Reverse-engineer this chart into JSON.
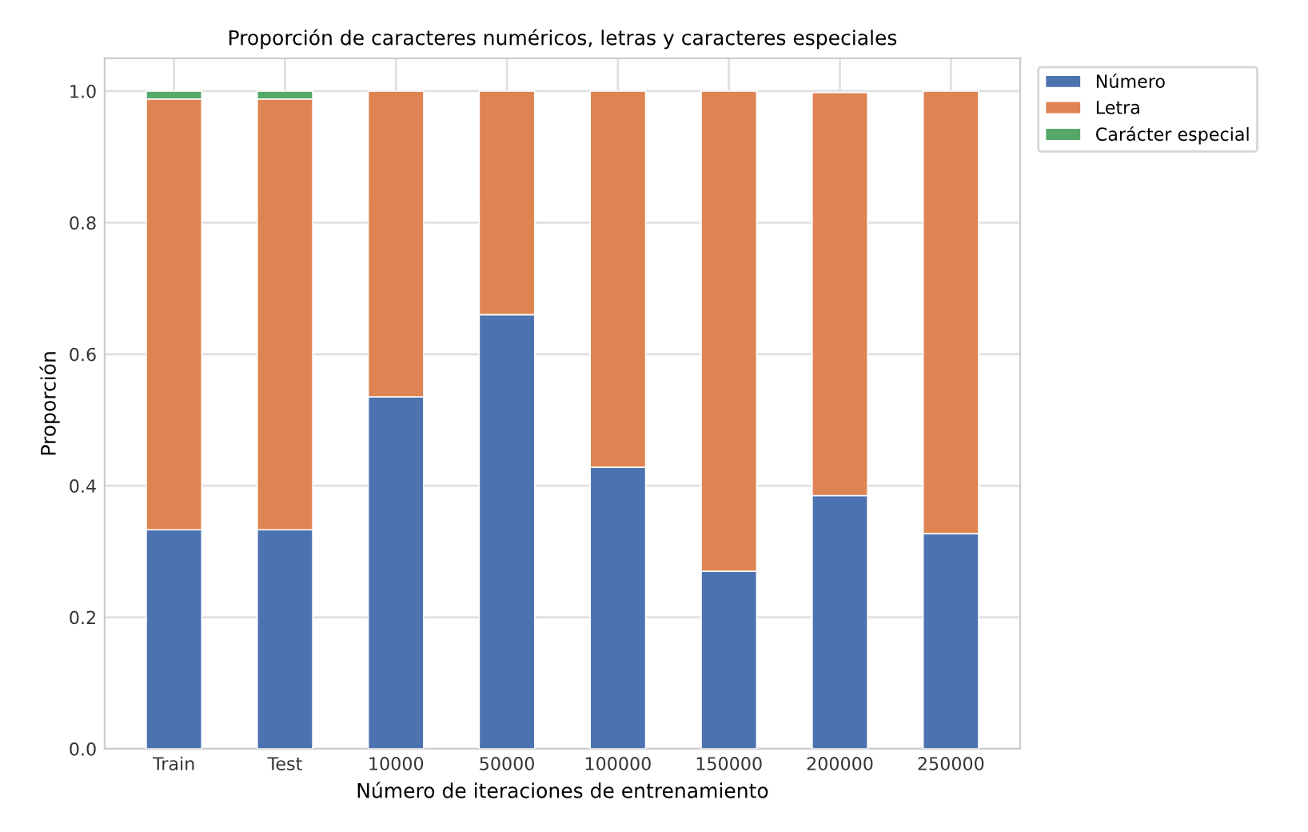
{
  "chart_data": {
    "type": "bar",
    "stacked": true,
    "title": "Proporción de caracteres numéricos, letras y caracteres especiales",
    "xlabel": "Número de iteraciones de entrenamiento",
    "ylabel": "Proporción",
    "categories": [
      "Train",
      "Test",
      "10000",
      "50000",
      "100000",
      "150000",
      "200000",
      "250000"
    ],
    "series": [
      {
        "name": "Número",
        "color": "#4c72b0",
        "values": [
          0.333,
          0.333,
          0.535,
          0.66,
          0.428,
          0.27,
          0.385,
          0.327
        ]
      },
      {
        "name": "Letra",
        "color": "#dd8452",
        "values": [
          0.655,
          0.655,
          0.465,
          0.34,
          0.572,
          0.73,
          0.613,
          0.673
        ]
      },
      {
        "name": "Carácter especial",
        "color": "#55a868",
        "values": [
          0.012,
          0.012,
          null,
          null,
          null,
          null,
          null,
          null
        ]
      }
    ],
    "ylim": [
      0,
      1.05
    ],
    "yticks": [
      {
        "value": 0,
        "label": "0.0"
      },
      {
        "value": 0.2,
        "label": "0.2"
      },
      {
        "value": 0.4,
        "label": "0.4"
      },
      {
        "value": 0.6,
        "label": "0.6"
      },
      {
        "value": 0.8,
        "label": "0.8"
      },
      {
        "value": 1,
        "label": "1.0"
      }
    ],
    "grid": true,
    "legend": "top right"
  }
}
